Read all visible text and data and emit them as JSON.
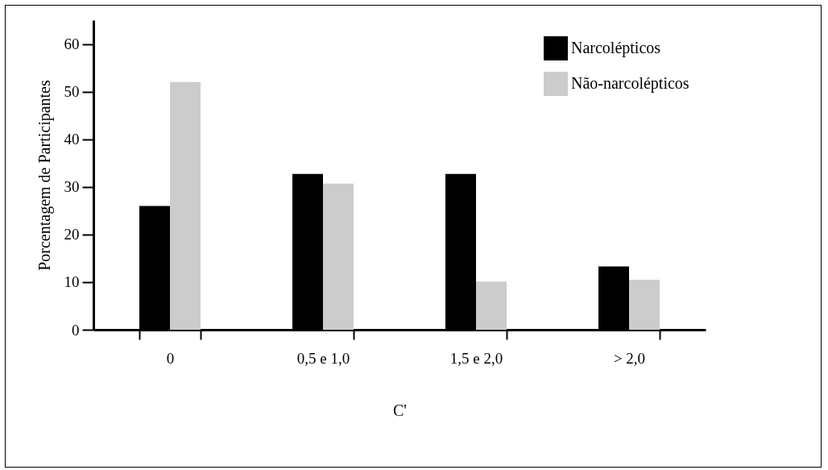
{
  "chart_data": {
    "type": "bar",
    "xlabel": "C'",
    "ylabel": "Porcentagem de Participantes",
    "categories": [
      "0",
      "0,5 e 1,0",
      "1,5 e 2,0",
      "> 2,0"
    ],
    "series": [
      {
        "name": "Narcolépticos",
        "color": "#000000",
        "values": [
          26,
          32.7,
          32.7,
          13.3
        ]
      },
      {
        "name": "Não-narcolépticos",
        "color": "#cccccc",
        "values": [
          52,
          30.7,
          10.1,
          10.5
        ]
      }
    ],
    "ylim": [
      0,
      65
    ],
    "yticks": [
      0,
      10,
      20,
      30,
      40,
      50,
      60
    ],
    "grid": false,
    "legend": "top right"
  }
}
